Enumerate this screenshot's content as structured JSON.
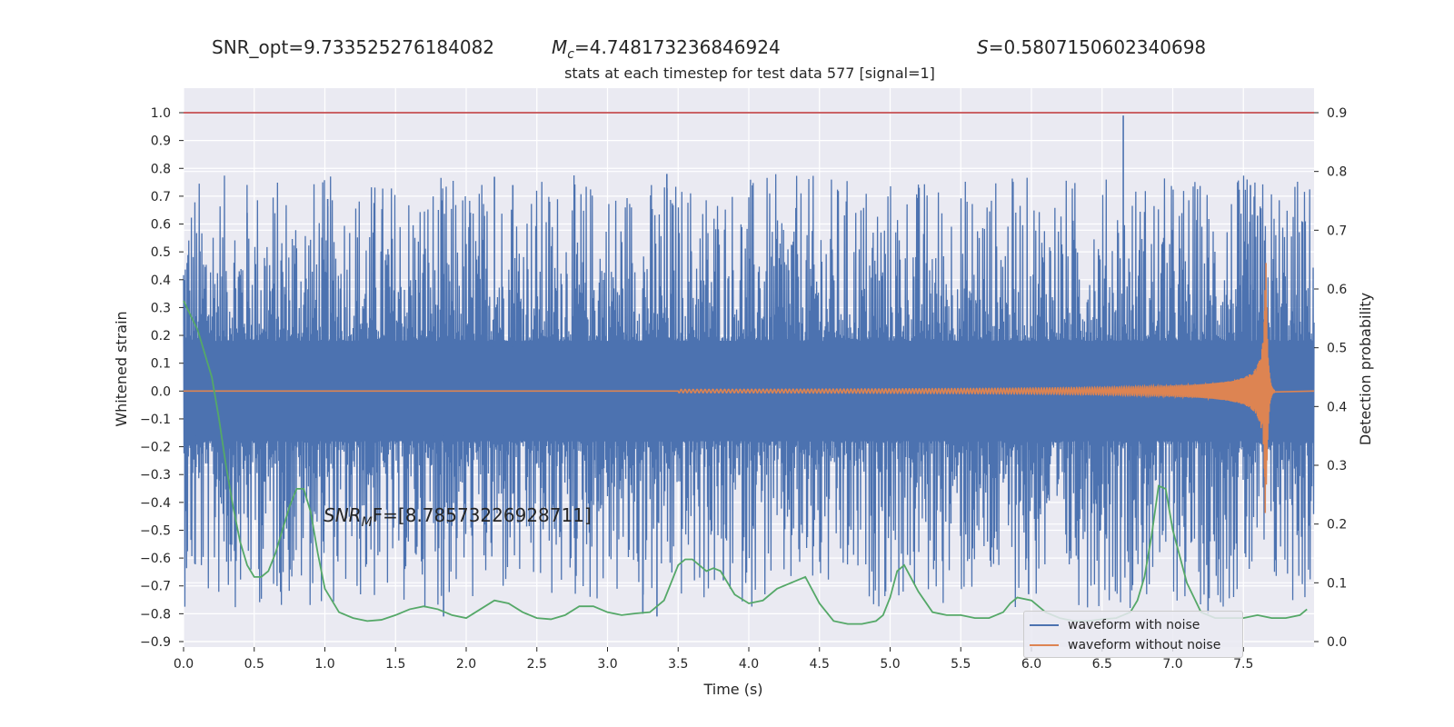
{
  "header": {
    "snr_opt": "SNR_opt=9.733525276184082",
    "mc_symbol": "M",
    "mc_sub": "c",
    "mc_value": "=4.748173236846924",
    "s_symbol": "S",
    "s_value": "=0.5807150602340698"
  },
  "annotation": {
    "snr_mf_symbol": "SNR",
    "snr_mf_sub": "M",
    "snr_mf_value": "F=[8.785732269287 11]",
    "snr_mf_text": "F=[8.78573226928711]"
  },
  "colors": {
    "background": "#eaeaf2",
    "grid": "#ffffff",
    "noise": "#4c72b0",
    "clean": "#dd8452",
    "probability": "#55a868",
    "threshold": "#c44e52"
  },
  "chart_data": {
    "type": "line",
    "title": "stats at each timestep for test data 577 [signal=1]",
    "xlabel": "Time (s)",
    "ylabel_left": "Whitened strain",
    "ylabel_right": "Detection probability",
    "xlim": [
      0,
      8
    ],
    "ylim_left": [
      -0.9,
      1.0
    ],
    "ylim_right": [
      0.0,
      0.9
    ],
    "x_ticks": [
      "0.0",
      "0.5",
      "1.0",
      "1.5",
      "2.0",
      "2.5",
      "3.0",
      "3.5",
      "4.0",
      "4.5",
      "5.0",
      "5.5",
      "6.0",
      "6.5",
      "7.0",
      "7.5"
    ],
    "y_ticks_left": [
      "1.0",
      "0.9",
      "0.8",
      "0.7",
      "0.6",
      "0.5",
      "0.4",
      "0.3",
      "0.2",
      "0.1",
      "0.0",
      "−0.1",
      "−0.2",
      "−0.3",
      "−0.4",
      "−0.5",
      "−0.6",
      "−0.7",
      "−0.8",
      "−0.9"
    ],
    "y_ticks_right": [
      "0.9",
      "0.8",
      "0.7",
      "0.6",
      "0.5",
      "0.4",
      "0.3",
      "0.2",
      "0.1",
      "0.0"
    ],
    "grid": true,
    "legend_position": "lower-right",
    "threshold": {
      "axis": "left",
      "value": 1.0
    },
    "series": [
      {
        "name": "waveform with noise",
        "axis": "left",
        "style": "dense-noise",
        "noise_band": 0.45,
        "spikes": [
          {
            "x": 6.65,
            "y": 0.99
          },
          {
            "x": 3.42,
            "y": 0.78
          },
          {
            "x": 2.2,
            "y": 0.77
          },
          {
            "x": 7.55,
            "y": 0.74
          },
          {
            "x": 2.33,
            "y": 0.74
          },
          {
            "x": 1.02,
            "y": 0.69
          },
          {
            "x": 0.45,
            "y": 0.64
          },
          {
            "x": 7.6,
            "y": 0.63
          },
          {
            "x": 3.82,
            "y": -0.68
          },
          {
            "x": 1.84,
            "y": -0.81
          },
          {
            "x": 3.25,
            "y": -0.8
          },
          {
            "x": 3.35,
            "y": -0.81
          },
          {
            "x": 7.25,
            "y": -0.8
          },
          {
            "x": 0.08,
            "y": -0.62
          },
          {
            "x": 5.98,
            "y": -0.73
          }
        ]
      },
      {
        "name": "waveform without noise",
        "axis": "left",
        "style": "chirp",
        "start_x": 3.5,
        "merger_x": 7.66,
        "peak_amplitude": 0.46,
        "ringdown_end_x": 7.72
      },
      {
        "name": "",
        "axis": "right",
        "style": "line",
        "x": [
          0.0,
          0.1,
          0.2,
          0.25,
          0.3,
          0.35,
          0.4,
          0.45,
          0.5,
          0.55,
          0.6,
          0.65,
          0.7,
          0.75,
          0.8,
          0.85,
          0.9,
          0.95,
          1.0,
          1.1,
          1.2,
          1.3,
          1.4,
          1.5,
          1.6,
          1.7,
          1.8,
          1.9,
          2.0,
          2.1,
          2.2,
          2.3,
          2.4,
          2.5,
          2.6,
          2.7,
          2.8,
          2.9,
          3.0,
          3.1,
          3.2,
          3.3,
          3.4,
          3.5,
          3.55,
          3.6,
          3.65,
          3.7,
          3.75,
          3.8,
          3.9,
          4.0,
          4.1,
          4.2,
          4.3,
          4.35,
          4.4,
          4.5,
          4.6,
          4.7,
          4.8,
          4.9,
          4.95,
          5.0,
          5.05,
          5.1,
          5.2,
          5.3,
          5.4,
          5.5,
          5.6,
          5.7,
          5.8,
          5.85,
          5.9,
          6.0,
          6.1,
          6.2,
          6.3,
          6.4,
          6.5,
          6.6,
          6.7,
          6.75,
          6.8,
          6.85,
          6.9,
          6.95,
          7.0,
          7.1,
          7.2,
          7.3,
          7.4,
          7.5,
          7.6,
          7.7,
          7.8,
          7.9,
          7.95
        ],
        "y": [
          0.58,
          0.53,
          0.45,
          0.38,
          0.3,
          0.23,
          0.17,
          0.13,
          0.11,
          0.11,
          0.12,
          0.15,
          0.19,
          0.23,
          0.26,
          0.26,
          0.22,
          0.15,
          0.09,
          0.05,
          0.04,
          0.035,
          0.037,
          0.045,
          0.055,
          0.06,
          0.055,
          0.045,
          0.04,
          0.055,
          0.07,
          0.065,
          0.05,
          0.04,
          0.038,
          0.045,
          0.06,
          0.06,
          0.05,
          0.045,
          0.048,
          0.05,
          0.07,
          0.13,
          0.14,
          0.14,
          0.13,
          0.12,
          0.125,
          0.12,
          0.08,
          0.065,
          0.07,
          0.09,
          0.1,
          0.105,
          0.11,
          0.065,
          0.035,
          0.03,
          0.03,
          0.035,
          0.045,
          0.075,
          0.12,
          0.13,
          0.085,
          0.05,
          0.045,
          0.045,
          0.04,
          0.04,
          0.05,
          0.065,
          0.075,
          0.07,
          0.05,
          0.04,
          0.035,
          0.035,
          0.038,
          0.04,
          0.05,
          0.07,
          0.11,
          0.18,
          0.265,
          0.26,
          0.19,
          0.1,
          0.05,
          0.04,
          0.04,
          0.04,
          0.045,
          0.04,
          0.04,
          0.045,
          0.055
        ]
      }
    ]
  }
}
